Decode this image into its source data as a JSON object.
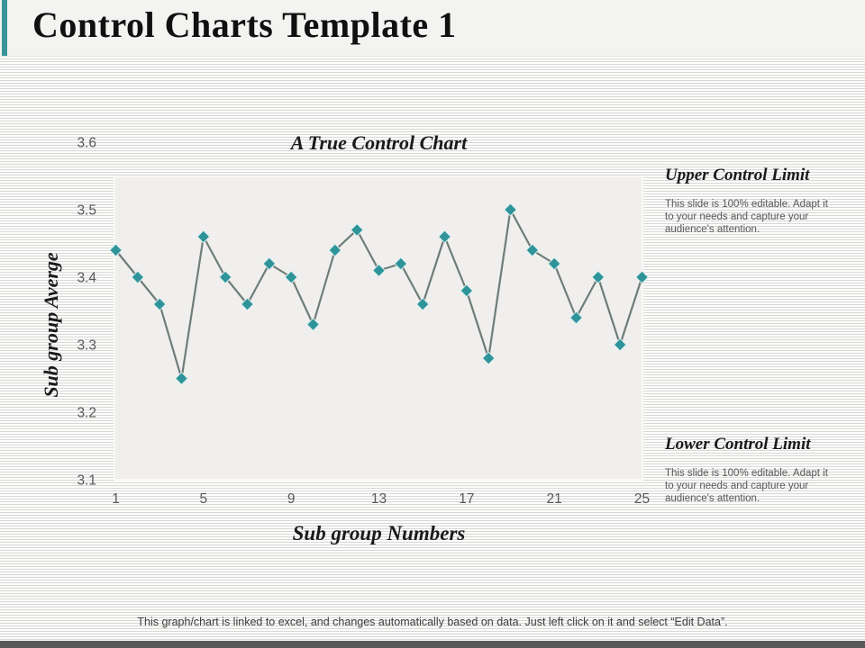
{
  "slide": {
    "title": "Control Charts Template 1",
    "footer": "This graph/chart is linked to excel,  and changes automatically based on data. Just left click on it and select “Edit Data”.",
    "accent_color": "#3a9598",
    "bottom_bar_color": "#595959"
  },
  "annotations": {
    "upper": {
      "heading": "Upper Control Limit",
      "body": "This slide is 100% editable.  Adapt it to your needs and capture your audience's attention."
    },
    "lower": {
      "heading": "Lower Control Limit",
      "body": "This slide is 100% editable.  Adapt it to your needs and capture your audience's attention."
    }
  },
  "chart_data": {
    "type": "line",
    "title": "A True Control Chart",
    "xlabel": "Sub group Numbers",
    "ylabel": "Sub group Averge",
    "x": [
      1,
      2,
      3,
      4,
      5,
      6,
      7,
      8,
      9,
      10,
      11,
      12,
      13,
      14,
      15,
      16,
      17,
      18,
      19,
      20,
      21,
      22,
      23,
      24,
      25
    ],
    "values": [
      3.44,
      3.4,
      3.36,
      3.25,
      3.46,
      3.4,
      3.36,
      3.42,
      3.4,
      3.33,
      3.44,
      3.47,
      3.41,
      3.42,
      3.36,
      3.46,
      3.38,
      3.28,
      3.5,
      3.44,
      3.42,
      3.34,
      3.4,
      3.3,
      3.4
    ],
    "xticks": [
      1,
      5,
      9,
      13,
      17,
      21,
      25
    ],
    "yticks": [
      "3.6",
      "3.5",
      "3.4",
      "3.3",
      "3.2",
      "3.1"
    ],
    "ytick_values": [
      3.6,
      3.5,
      3.4,
      3.3,
      3.2,
      3.1
    ],
    "xlim": [
      1,
      25
    ],
    "ylim": [
      3.1,
      3.6
    ],
    "grid": false,
    "legend": null,
    "marker": "diamond",
    "line_color": "#6e7d78",
    "marker_color": "#2e949a",
    "marker_outline": "#ddeff0",
    "plot_bg": "#f0efee",
    "tick_color": "#595959"
  }
}
